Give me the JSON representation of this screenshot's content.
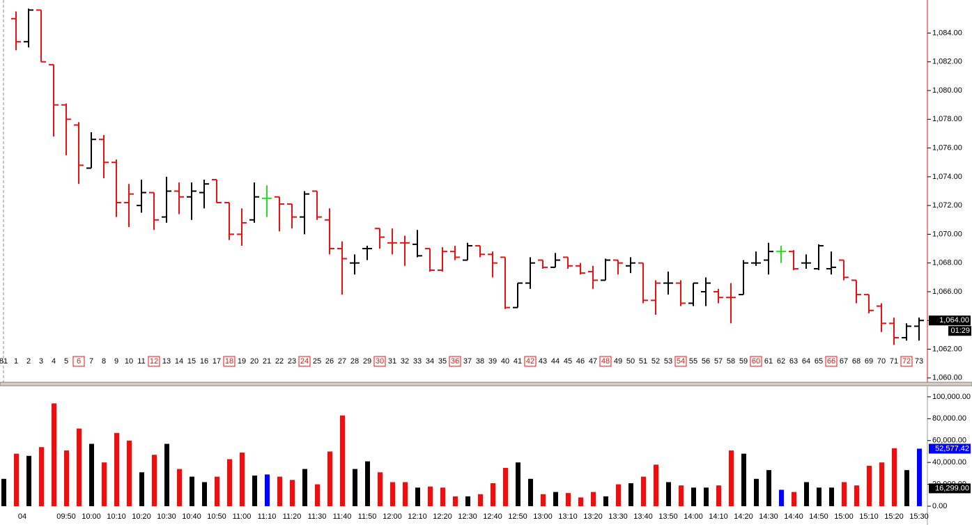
{
  "chart_data": [
    {
      "type": "ohlc",
      "categories": [
        "81",
        "1",
        "2",
        "3",
        "4",
        "5",
        "6",
        "7",
        "8",
        "9",
        "10",
        "11",
        "12",
        "13",
        "14",
        "15",
        "16",
        "17",
        "18",
        "19",
        "20",
        "21",
        "22",
        "23",
        "24",
        "25",
        "26",
        "27",
        "28",
        "29",
        "30",
        "31",
        "32",
        "33",
        "34",
        "35",
        "36",
        "37",
        "38",
        "39",
        "40",
        "41",
        "42",
        "43",
        "44",
        "45",
        "46",
        "47",
        "48",
        "49",
        "50",
        "51",
        "52",
        "53",
        "54",
        "55",
        "56",
        "57",
        "58",
        "59",
        "60",
        "61",
        "62",
        "63",
        "64",
        "65",
        "66",
        "67",
        "68",
        "69",
        "70",
        "71",
        "72",
        "73"
      ],
      "open": [
        null,
        1085.0,
        1083.4,
        1085.6,
        1081.8,
        1079.0,
        1077.6,
        1074.6,
        1076.6,
        1075.0,
        1072.2,
        1072.0,
        1072.9,
        1071.2,
        1073.0,
        1072.6,
        1072.9,
        1073.8,
        1072.2,
        1070.0,
        1071.0,
        1072.5,
        1072.6,
        1072.1,
        1071.2,
        1073.0,
        1071.0,
        1069.0,
        1068.0,
        1069.0,
        1070.4,
        1069.4,
        1069.4,
        1069.3,
        1069.0,
        1067.5,
        1068.8,
        1068.2,
        1069.2,
        1068.6,
        1068.4,
        1064.9,
        1066.6,
        1068.2,
        1067.7,
        1068.4,
        1067.8,
        1067.4,
        1066.8,
        1068.2,
        1067.8,
        1068.0,
        1065.4,
        1066.6,
        1066.6,
        1065.2,
        1066.0,
        1066.0,
        1065.6,
        1065.8,
        1068.0,
        1068.2,
        1068.8,
        1068.8,
        1068.0,
        1067.6,
        1067.6,
        1068.2,
        1066.8,
        1065.8,
        1065.0,
        1063.8,
        1062.8,
        1063.6
      ],
      "high": [
        null,
        1085.5,
        1085.7,
        1085.6,
        1081.8,
        1079.1,
        1077.8,
        1077.1,
        1076.9,
        1075.2,
        1073.5,
        1073.8,
        1072.9,
        1074.0,
        1073.6,
        1073.6,
        1073.8,
        1073.8,
        1072.2,
        1071.8,
        1073.6,
        1073.4,
        1072.6,
        1072.1,
        1073.0,
        1073.0,
        1071.8,
        1069.5,
        1068.6,
        1069.2,
        1070.4,
        1070.4,
        1069.9,
        1070.3,
        1069.0,
        1069.1,
        1069.2,
        1069.4,
        1069.2,
        1068.8,
        1068.4,
        1066.6,
        1068.4,
        1068.2,
        1068.7,
        1068.4,
        1068.0,
        1067.8,
        1068.3,
        1068.2,
        1068.4,
        1068.0,
        1066.8,
        1067.4,
        1066.8,
        1066.6,
        1067.0,
        1066.2,
        1066.6,
        1068.2,
        1068.8,
        1069.4,
        1069.2,
        1068.9,
        1068.6,
        1069.3,
        1068.8,
        1068.2,
        1066.8,
        1065.8,
        1065.2,
        1064.2,
        1063.8,
        1064.2
      ],
      "low": [
        null,
        1082.8,
        1083.0,
        1082.0,
        1076.8,
        1075.5,
        1073.5,
        1074.6,
        1073.9,
        1071.2,
        1070.5,
        1071.5,
        1070.3,
        1070.8,
        1071.4,
        1071.0,
        1071.8,
        1072.2,
        1069.6,
        1069.2,
        1070.8,
        1071.2,
        1070.2,
        1070.4,
        1070.0,
        1071.0,
        1068.6,
        1065.8,
        1067.2,
        1068.2,
        1069.0,
        1068.6,
        1067.8,
        1068.4,
        1067.4,
        1067.4,
        1068.2,
        1068.2,
        1068.4,
        1067.0,
        1064.8,
        1064.9,
        1066.2,
        1067.6,
        1067.7,
        1067.6,
        1067.2,
        1066.2,
        1066.8,
        1067.2,
        1067.3,
        1065.2,
        1064.4,
        1065.8,
        1065.0,
        1065.0,
        1065.0,
        1065.2,
        1063.8,
        1065.8,
        1067.8,
        1067.2,
        1068.0,
        1067.5,
        1067.6,
        1067.5,
        1067.2,
        1066.8,
        1065.2,
        1064.5,
        1063.2,
        1062.3,
        1062.6,
        1062.6
      ],
      "close": [
        null,
        1083.4,
        1085.6,
        1082.0,
        1079.0,
        1078.0,
        1074.8,
        1076.6,
        1075.0,
        1072.2,
        1072.8,
        1072.9,
        1071.0,
        1073.0,
        1072.6,
        1073.0,
        1073.5,
        1072.2,
        1070.0,
        1070.8,
        1072.6,
        1072.5,
        1072.1,
        1071.2,
        1072.8,
        1071.2,
        1069.0,
        1068.3,
        1068.0,
        1069.0,
        1069.8,
        1069.4,
        1069.4,
        1068.5,
        1067.5,
        1068.8,
        1068.4,
        1069.2,
        1068.6,
        1068.0,
        1064.9,
        1066.6,
        1068.0,
        1067.7,
        1068.2,
        1067.8,
        1067.3,
        1066.8,
        1068.2,
        1068.0,
        1068.0,
        1065.4,
        1066.6,
        1066.6,
        1065.2,
        1066.6,
        1066.6,
        1065.6,
        1065.6,
        1068.0,
        1068.0,
        1068.8,
        1068.8,
        1067.6,
        1068.0,
        1069.2,
        1067.7,
        1067.0,
        1065.8,
        1064.7,
        1063.8,
        1062.8,
        1063.6,
        1064.0
      ],
      "colors": [
        "#000000",
        "#e81010",
        "#000000",
        "#e81010",
        "#e81010",
        "#e81010",
        "#e81010",
        "#000000",
        "#e81010",
        "#e81010",
        "#e81010",
        "#000000",
        "#e81010",
        "#000000",
        "#e81010",
        "#000000",
        "#000000",
        "#e81010",
        "#e81010",
        "#e81010",
        "#000000",
        "#22dd22",
        "#e81010",
        "#e81010",
        "#000000",
        "#e81010",
        "#e81010",
        "#e81010",
        "#000000",
        "#000000",
        "#e81010",
        "#e81010",
        "#e81010",
        "#000000",
        "#e81010",
        "#e81010",
        "#e81010",
        "#000000",
        "#e81010",
        "#e81010",
        "#e81010",
        "#000000",
        "#000000",
        "#e81010",
        "#000000",
        "#e81010",
        "#e81010",
        "#e81010",
        "#000000",
        "#e81010",
        "#000000",
        "#e81010",
        "#e81010",
        "#000000",
        "#e81010",
        "#000000",
        "#000000",
        "#e81010",
        "#e81010",
        "#000000",
        "#000000",
        "#000000",
        "#22dd22",
        "#e81010",
        "#000000",
        "#000000",
        "#000000",
        "#e81010",
        "#e81010",
        "#e81010",
        "#e81010",
        "#e81010",
        "#000000",
        "#000000"
      ],
      "ylim": [
        1059.7,
        1086.3
      ],
      "yticks": [
        {
          "value": 1060,
          "label": "1,060.00"
        },
        {
          "value": 1062,
          "label": "1,062.00"
        },
        {
          "value": 1064,
          "label": "1,064.00"
        },
        {
          "value": 1066,
          "label": "1,066.00"
        },
        {
          "value": 1068,
          "label": "1,068.00"
        },
        {
          "value": 1070,
          "label": "1,070.00"
        },
        {
          "value": 1072,
          "label": "1,072.00"
        },
        {
          "value": 1074,
          "label": "1,074.00"
        },
        {
          "value": 1076,
          "label": "1,076.00"
        },
        {
          "value": 1078,
          "label": "1,078.00"
        },
        {
          "value": 1080,
          "label": "1,080.00"
        },
        {
          "value": 1082,
          "label": "1,082.00"
        },
        {
          "value": 1084,
          "label": "1,084.00"
        }
      ],
      "markers": [
        {
          "value": 1064,
          "label": "1,064.00",
          "color": "#000000"
        }
      ],
      "timer": "01:29"
    },
    {
      "type": "bar",
      "categories": [
        null,
        "04",
        null,
        null,
        null,
        "09:50",
        null,
        "10:00",
        null,
        "10:10",
        null,
        "10:20",
        null,
        "10:30",
        null,
        "10:40",
        null,
        "10:50",
        null,
        "11:00",
        null,
        "11:10",
        null,
        "11:20",
        null,
        "11:30",
        null,
        "11:40",
        null,
        "11:50",
        null,
        "12:00",
        null,
        "12:10",
        null,
        "12:20",
        null,
        "12:30",
        null,
        "12:40",
        null,
        "12:50",
        null,
        "13:00",
        null,
        "13:10",
        null,
        "13:20",
        null,
        "13:30",
        null,
        "13:40",
        null,
        "13:50",
        null,
        "14:00",
        null,
        "14:10",
        null,
        "14:20",
        null,
        "14:30",
        null,
        "14:40",
        null,
        "14:50",
        null,
        "15:00",
        null,
        "15:10",
        null,
        "15:20",
        null,
        "15:30"
      ],
      "values": [
        25000,
        48000,
        46000,
        54000,
        94000,
        51000,
        71000,
        57000,
        40000,
        67000,
        60000,
        31000,
        47000,
        57000,
        34000,
        27000,
        22000,
        27000,
        43000,
        49000,
        28000,
        29000,
        27000,
        24000,
        34000,
        20000,
        50000,
        83000,
        34000,
        41000,
        31000,
        22000,
        22000,
        17000,
        18000,
        17000,
        9000,
        9000,
        11000,
        21000,
        35000,
        40000,
        25000,
        11000,
        13000,
        12000,
        8000,
        13000,
        9000,
        20000,
        21000,
        27000,
        38000,
        22000,
        19000,
        17000,
        17000,
        19000,
        51000,
        48000,
        25000,
        33000,
        15000,
        13000,
        22000,
        17000,
        17000,
        22000,
        19000,
        37000,
        40000,
        53000,
        33000,
        52577.42
      ],
      "colors": [
        "#000000",
        "#e81010",
        "#000000",
        "#e81010",
        "#e81010",
        "#e81010",
        "#e81010",
        "#000000",
        "#e81010",
        "#e81010",
        "#e81010",
        "#000000",
        "#e81010",
        "#000000",
        "#e81010",
        "#000000",
        "#000000",
        "#e81010",
        "#e81010",
        "#e81010",
        "#000000",
        "#0000ff",
        "#e81010",
        "#e81010",
        "#000000",
        "#e81010",
        "#e81010",
        "#e81010",
        "#000000",
        "#000000",
        "#e81010",
        "#e81010",
        "#e81010",
        "#000000",
        "#e81010",
        "#e81010",
        "#e81010",
        "#000000",
        "#e81010",
        "#e81010",
        "#e81010",
        "#000000",
        "#000000",
        "#e81010",
        "#000000",
        "#e81010",
        "#e81010",
        "#e81010",
        "#000000",
        "#e81010",
        "#000000",
        "#e81010",
        "#e81010",
        "#000000",
        "#e81010",
        "#000000",
        "#000000",
        "#e81010",
        "#e81010",
        "#000000",
        "#000000",
        "#000000",
        "#0000ff",
        "#e81010",
        "#000000",
        "#000000",
        "#000000",
        "#e81010",
        "#e81010",
        "#e81010",
        "#e81010",
        "#e81010",
        "#000000",
        "#0000ff"
      ],
      "ylim": [
        -17200,
        109500
      ],
      "yticks": [
        {
          "value": 0,
          "label": "0.00"
        },
        {
          "value": 20000,
          "label": "20,000.00"
        },
        {
          "value": 40000,
          "label": "40,000.00"
        },
        {
          "value": 60000,
          "label": "60,000.00"
        },
        {
          "value": 80000,
          "label": "80,000.00"
        },
        {
          "value": 100000,
          "label": "100,000.00"
        }
      ],
      "markers": [
        {
          "value": 52577.42,
          "label": "52,577.42",
          "color": "#0000ff"
        },
        {
          "value": 16299,
          "label": "16,299.00",
          "color": "#000000"
        }
      ]
    }
  ]
}
